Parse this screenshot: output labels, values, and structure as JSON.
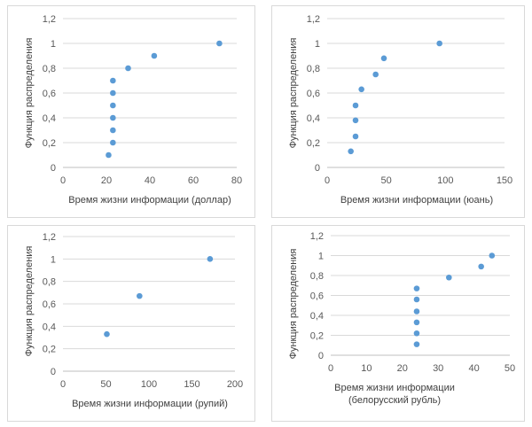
{
  "colors": {
    "marker": "#5b9bd5",
    "grid": "#d9d9d9",
    "text": "#595959"
  },
  "chart_data": [
    {
      "type": "scatter",
      "xlabel": "Время жизни информации (доллар)",
      "ylabel": "Функция распределения",
      "xlim": [
        0,
        80
      ],
      "ylim": [
        0,
        1.2
      ],
      "xticks": [
        "0",
        "20",
        "40",
        "60",
        "80"
      ],
      "yticks": [
        "0",
        "0,2",
        "0,4",
        "0,6",
        "0,8",
        "1",
        "1,2"
      ],
      "grid": "horizontal",
      "points": [
        [
          21,
          0.1
        ],
        [
          23,
          0.2
        ],
        [
          23,
          0.3
        ],
        [
          23,
          0.4
        ],
        [
          23,
          0.5
        ],
        [
          23,
          0.6
        ],
        [
          23,
          0.7
        ],
        [
          30,
          0.8
        ],
        [
          42,
          0.9
        ],
        [
          72,
          1.0
        ]
      ]
    },
    {
      "type": "scatter",
      "xlabel": "Время жизни информации (юань)",
      "ylabel": "Функция распределения",
      "xlim": [
        0,
        150
      ],
      "ylim": [
        0,
        1.2
      ],
      "xticks": [
        "0",
        "50",
        "100",
        "150"
      ],
      "yticks": [
        "0",
        "0,2",
        "0,4",
        "0,6",
        "0,8",
        "1",
        "1,2"
      ],
      "grid": "horizontal",
      "points": [
        [
          20,
          0.13
        ],
        [
          24,
          0.25
        ],
        [
          24,
          0.38
        ],
        [
          24,
          0.5
        ],
        [
          29,
          0.63
        ],
        [
          41,
          0.75
        ],
        [
          48,
          0.88
        ],
        [
          95,
          1.0
        ]
      ]
    },
    {
      "type": "scatter",
      "xlabel": "Время жизни информации (рупий)",
      "ylabel": "Функция распределения",
      "xlim": [
        0,
        200
      ],
      "ylim": [
        0,
        1.2
      ],
      "xticks": [
        "0",
        "50",
        "100",
        "150",
        "200"
      ],
      "yticks": [
        "0",
        "0,2",
        "0,4",
        "0,6",
        "0,8",
        "1",
        "1,2"
      ],
      "grid": "horizontal",
      "points": [
        [
          51,
          0.33
        ],
        [
          89,
          0.67
        ],
        [
          171,
          1.0
        ]
      ]
    },
    {
      "type": "scatter",
      "xlabel": "Время жизни информации (белорусский рубль)",
      "ylabel": "Функция распределения",
      "xlim": [
        0,
        50
      ],
      "ylim": [
        0,
        1.2
      ],
      "xticks": [
        "0",
        "10",
        "20",
        "30",
        "40",
        "50"
      ],
      "yticks": [
        "0",
        "0,2",
        "0,4",
        "0,6",
        "0,8",
        "1",
        "1,2"
      ],
      "grid": "horizontal",
      "points": [
        [
          24,
          0.11
        ],
        [
          24,
          0.22
        ],
        [
          24,
          0.33
        ],
        [
          24,
          0.44
        ],
        [
          24,
          0.56
        ],
        [
          24,
          0.67
        ],
        [
          33,
          0.78
        ],
        [
          42,
          0.89
        ],
        [
          45,
          1.0
        ]
      ]
    }
  ]
}
